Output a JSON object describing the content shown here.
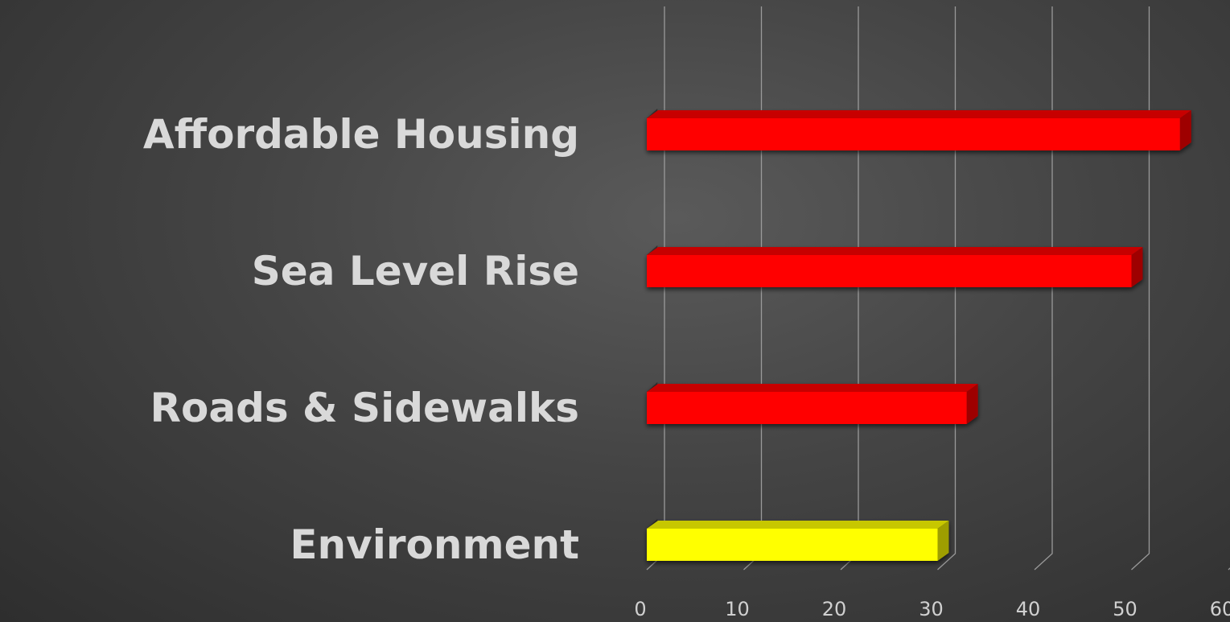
{
  "chart_data": {
    "type": "bar",
    "orientation": "horizontal",
    "categories": [
      "Affordable Housing",
      "Sea Level Rise",
      "Roads & Sidewalks",
      "Environment"
    ],
    "values": [
      55,
      50,
      33,
      30
    ],
    "bar_colors": [
      "#ff0000",
      "#ff0000",
      "#ff0000",
      "#ffff00"
    ],
    "x_ticks": [
      "0",
      "10",
      "20",
      "30",
      "40",
      "50",
      "60"
    ],
    "xlim": [
      0,
      60
    ],
    "grid": true,
    "style": "3d"
  }
}
